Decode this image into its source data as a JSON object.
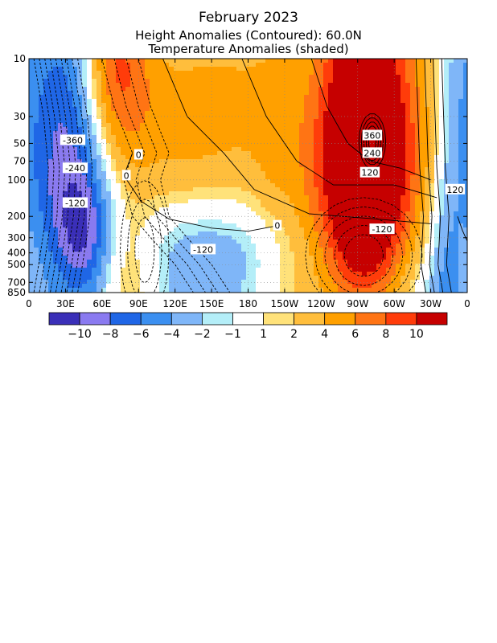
{
  "titles": {
    "line1": "February 2023",
    "line2": "Height Anomalies (Contoured): 60.0N",
    "line3": "Temperature Anomalies (shaded)"
  },
  "chart_data": {
    "type": "heatmap",
    "x_ticks": [
      "0",
      "30E",
      "60E",
      "90E",
      "120E",
      "150E",
      "180",
      "150W",
      "120W",
      "90W",
      "60W",
      "30W",
      "0"
    ],
    "y_ticks": [
      "10",
      "30",
      "50",
      "70",
      "100",
      "200",
      "300",
      "400",
      "500",
      "700",
      "850"
    ],
    "y_values": [
      10,
      30,
      50,
      70,
      100,
      200,
      300,
      400,
      500,
      700,
      850
    ],
    "y_scale": "log",
    "grid": true,
    "colorbar": {
      "labels": [
        "-10",
        "-8",
        "-6",
        "-4",
        "-2",
        "-1",
        "1",
        "2",
        "4",
        "6",
        "8",
        "10"
      ],
      "colors": [
        "#3a2fb8",
        "#8a7af0",
        "#1f66e6",
        "#3b8ff0",
        "#7fb6f8",
        "#b4eef8",
        "#ffffff",
        "#ffe27a",
        "#ffbe3c",
        "#ffa000",
        "#ff7414",
        "#ff3c0a",
        "#c60000"
      ]
    },
    "contour_labels": [
      {
        "text": "-360",
        "lon": 36,
        "p": 47
      },
      {
        "text": "-240",
        "lon": 38,
        "p": 80
      },
      {
        "text": "-120",
        "lon": 38,
        "p": 155
      },
      {
        "text": "0",
        "lon": 90,
        "p": 62
      },
      {
        "text": "0",
        "lon": 80,
        "p": 92
      },
      {
        "text": "-120",
        "lon": 143,
        "p": 375
      },
      {
        "text": "0",
        "lon": 204,
        "p": 238
      },
      {
        "text": "360",
        "lon": 282,
        "p": 43
      },
      {
        "text": "240",
        "lon": 282,
        "p": 60
      },
      {
        "text": "120",
        "lon": 280,
        "p": 87
      },
      {
        "text": "-120",
        "lon": 290,
        "p": 255
      },
      {
        "text": "120",
        "lon": 350,
        "p": 120
      }
    ]
  }
}
